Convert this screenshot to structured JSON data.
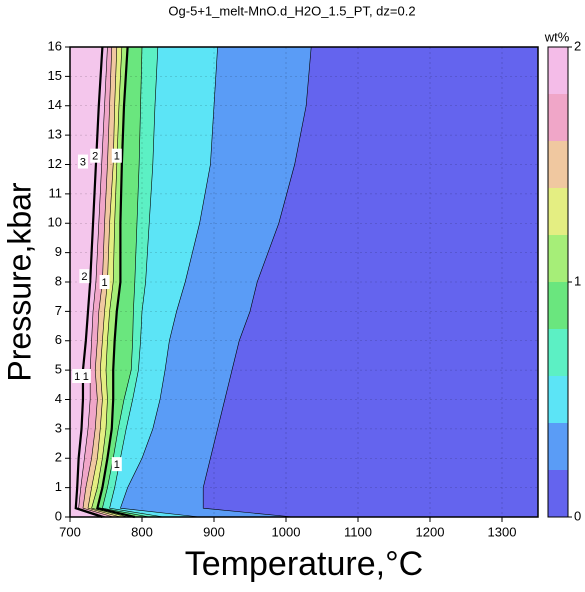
{
  "chart_data": {
    "type": "contour",
    "title": "Og-5+1_melt-MnO.d_H2O_1.5_PT, dz=0.2",
    "xlabel": "Temperature,°C",
    "ylabel": "Pressure,kbar",
    "xlim": [
      700,
      1350
    ],
    "ylim": [
      0,
      16
    ],
    "xticks": [
      700,
      800,
      900,
      1000,
      1100,
      1200,
      1300
    ],
    "yticks": [
      0,
      1,
      2,
      3,
      4,
      5,
      6,
      7,
      8,
      9,
      10,
      11,
      12,
      13,
      14,
      15,
      16
    ],
    "grid": true,
    "colorbar": {
      "label": "wt%",
      "levels": [
        0,
        0.2,
        0.4,
        0.6,
        0.8,
        1,
        1.2,
        1.4,
        1.6,
        1.8,
        2
      ],
      "colors": [
        "#6464ee",
        "#5a9cf6",
        "#5ce4f6",
        "#5cf0c4",
        "#6ae67e",
        "#a6ee78",
        "#e4ee82",
        "#f0c8a0",
        "#f0a6c8",
        "#f4bce8"
      ],
      "ticks": [
        0,
        1,
        2
      ]
    },
    "over_color": "#f4c6ec",
    "contour_y": [
      0,
      0.3,
      1,
      2,
      3,
      4,
      5,
      6,
      7,
      8,
      10,
      12,
      14,
      16
    ],
    "contours": [
      {
        "level": 0.2,
        "x": [
          1010,
          885,
          885,
          895,
          905,
          915,
          925,
          935,
          950,
          960,
          990,
          1012,
          1028,
          1035
        ]
      },
      {
        "level": 0.4,
        "x": [
          880,
          770,
          780,
          800,
          815,
          825,
          832,
          838,
          848,
          860,
          880,
          895,
          900,
          905
        ]
      },
      {
        "level": 0.6,
        "x": [
          830,
          755,
          762,
          770,
          778,
          787,
          795,
          798,
          800,
          805,
          810,
          815,
          818,
          822
        ]
      },
      {
        "level": 0.8,
        "x": [
          810,
          745,
          752,
          760,
          767,
          775,
          785,
          787,
          788,
          790,
          793,
          796,
          798,
          800
        ]
      },
      {
        "level": 1,
        "x": [
          790,
          738,
          745,
          752,
          758,
          760,
          760,
          762,
          765,
          770,
          770,
          772,
          775,
          780
        ]
      },
      {
        "level": 1.2,
        "x": [
          780,
          730,
          738,
          745,
          750,
          752,
          750,
          752,
          755,
          760,
          762,
          765,
          768,
          772
        ]
      },
      {
        "level": 1.4,
        "x": [
          770,
          725,
          730,
          738,
          742,
          745,
          742,
          745,
          748,
          752,
          755,
          760,
          762,
          765
        ]
      },
      {
        "level": 1.6,
        "x": [
          760,
          718,
          722,
          730,
          735,
          738,
          735,
          738,
          740,
          745,
          748,
          752,
          755,
          758
        ]
      },
      {
        "level": 1.8,
        "x": [
          750,
          712,
          715,
          720,
          725,
          728,
          728,
          730,
          732,
          736,
          740,
          744,
          748,
          752
        ]
      },
      {
        "level": 2,
        "x": [
          745,
          708,
          710,
          712,
          716,
          718,
          718,
          722,
          725,
          728,
          732,
          736,
          740,
          745
        ]
      }
    ],
    "contour_labels": [
      {
        "text": "3",
        "x": 718,
        "y": 12.1
      },
      {
        "text": "2",
        "x": 735,
        "y": 12.3
      },
      {
        "text": "1",
        "x": 765,
        "y": 12.3
      },
      {
        "text": "2",
        "x": 720,
        "y": 8.2
      },
      {
        "text": "1",
        "x": 748,
        "y": 8.0
      },
      {
        "text": "1",
        "x": 710,
        "y": 4.8
      },
      {
        "text": "1",
        "x": 722,
        "y": 4.8
      },
      {
        "text": "1",
        "x": 765,
        "y": 1.8
      }
    ]
  }
}
